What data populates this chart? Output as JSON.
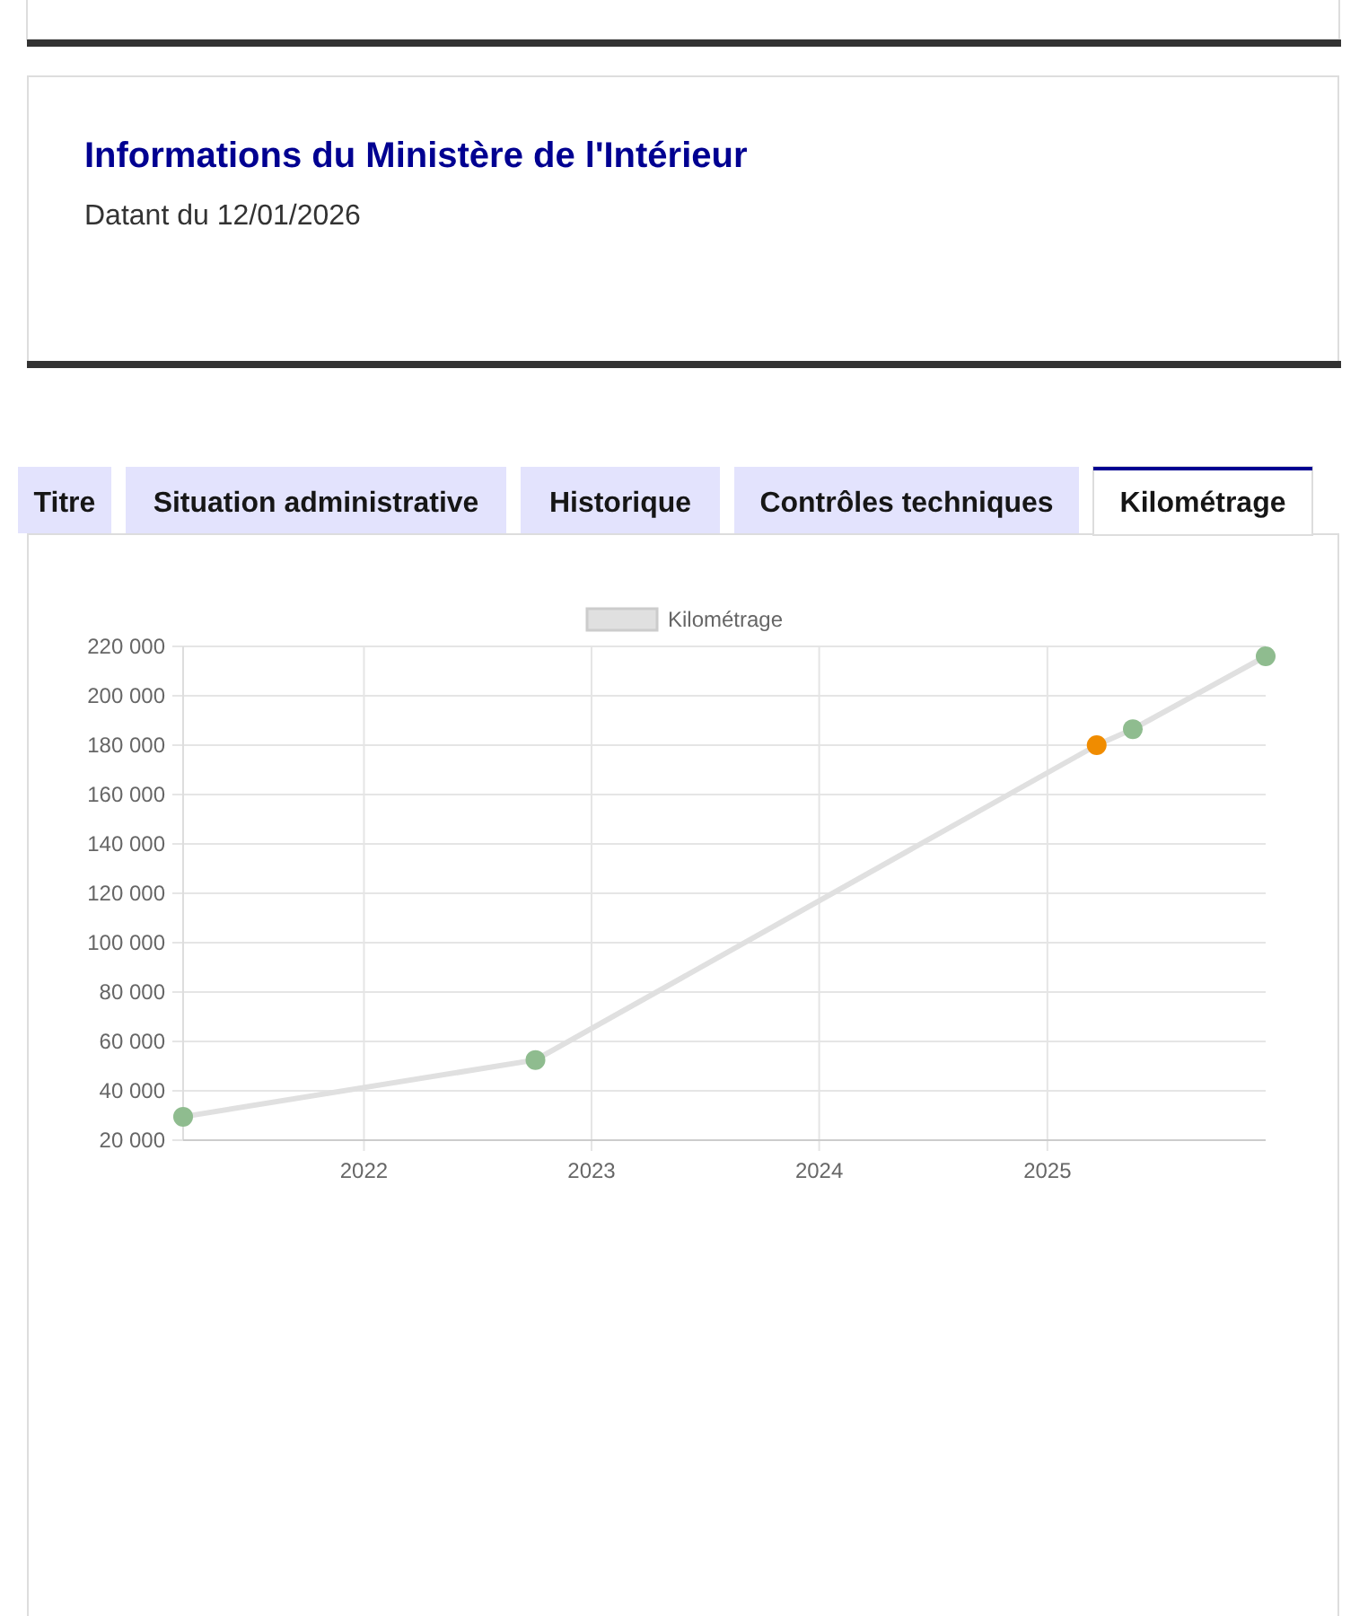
{
  "chart_data": {
    "type": "line",
    "title": "Informations du Ministère de l'Intérieur",
    "subtitle": "Datant du 12/01/2026",
    "annotations": [
      "Titre",
      "Situation administrative",
      "Historique",
      "Contrôles techniques",
      "Kilométrage"
    ],
    "x": [
      "2021-03-17",
      "2022-10-03",
      "2025-03-21",
      "2025-05-18",
      "2025-12-17"
    ],
    "series": [
      {
        "name": "Kilométrage",
        "color": "#e0e0e0",
        "values": [
          29500,
          52500,
          180000,
          186500,
          216000
        ],
        "colors": [
          "#8fbc8f",
          "#8fbc8f",
          "#f08c00",
          "#8fbc8f",
          "#8fbc8f"
        ]
      }
    ],
    "xlim": [
      "2021-03-17",
      "2025-12-17"
    ],
    "xticks": [
      "2022",
      "2023",
      "2024",
      "2025"
    ],
    "ylim": [
      20000,
      220000
    ],
    "yticks": [
      {
        "value": 20000,
        "label": "20 000"
      },
      {
        "value": 40000,
        "label": "40 000"
      },
      {
        "value": 60000,
        "label": "60 000"
      },
      {
        "value": 80000,
        "label": "80 000"
      },
      {
        "value": 100000,
        "label": "100 000"
      },
      {
        "value": 120000,
        "label": "120 000"
      },
      {
        "value": 140000,
        "label": "140 000"
      },
      {
        "value": 160000,
        "label": "160 000"
      },
      {
        "value": 180000,
        "label": "180 000"
      },
      {
        "value": 200000,
        "label": "200 000"
      },
      {
        "value": 220000,
        "label": "220 000"
      }
    ],
    "grid": true,
    "legend": "top",
    "marker": "circle",
    "line_style": "solid"
  }
}
